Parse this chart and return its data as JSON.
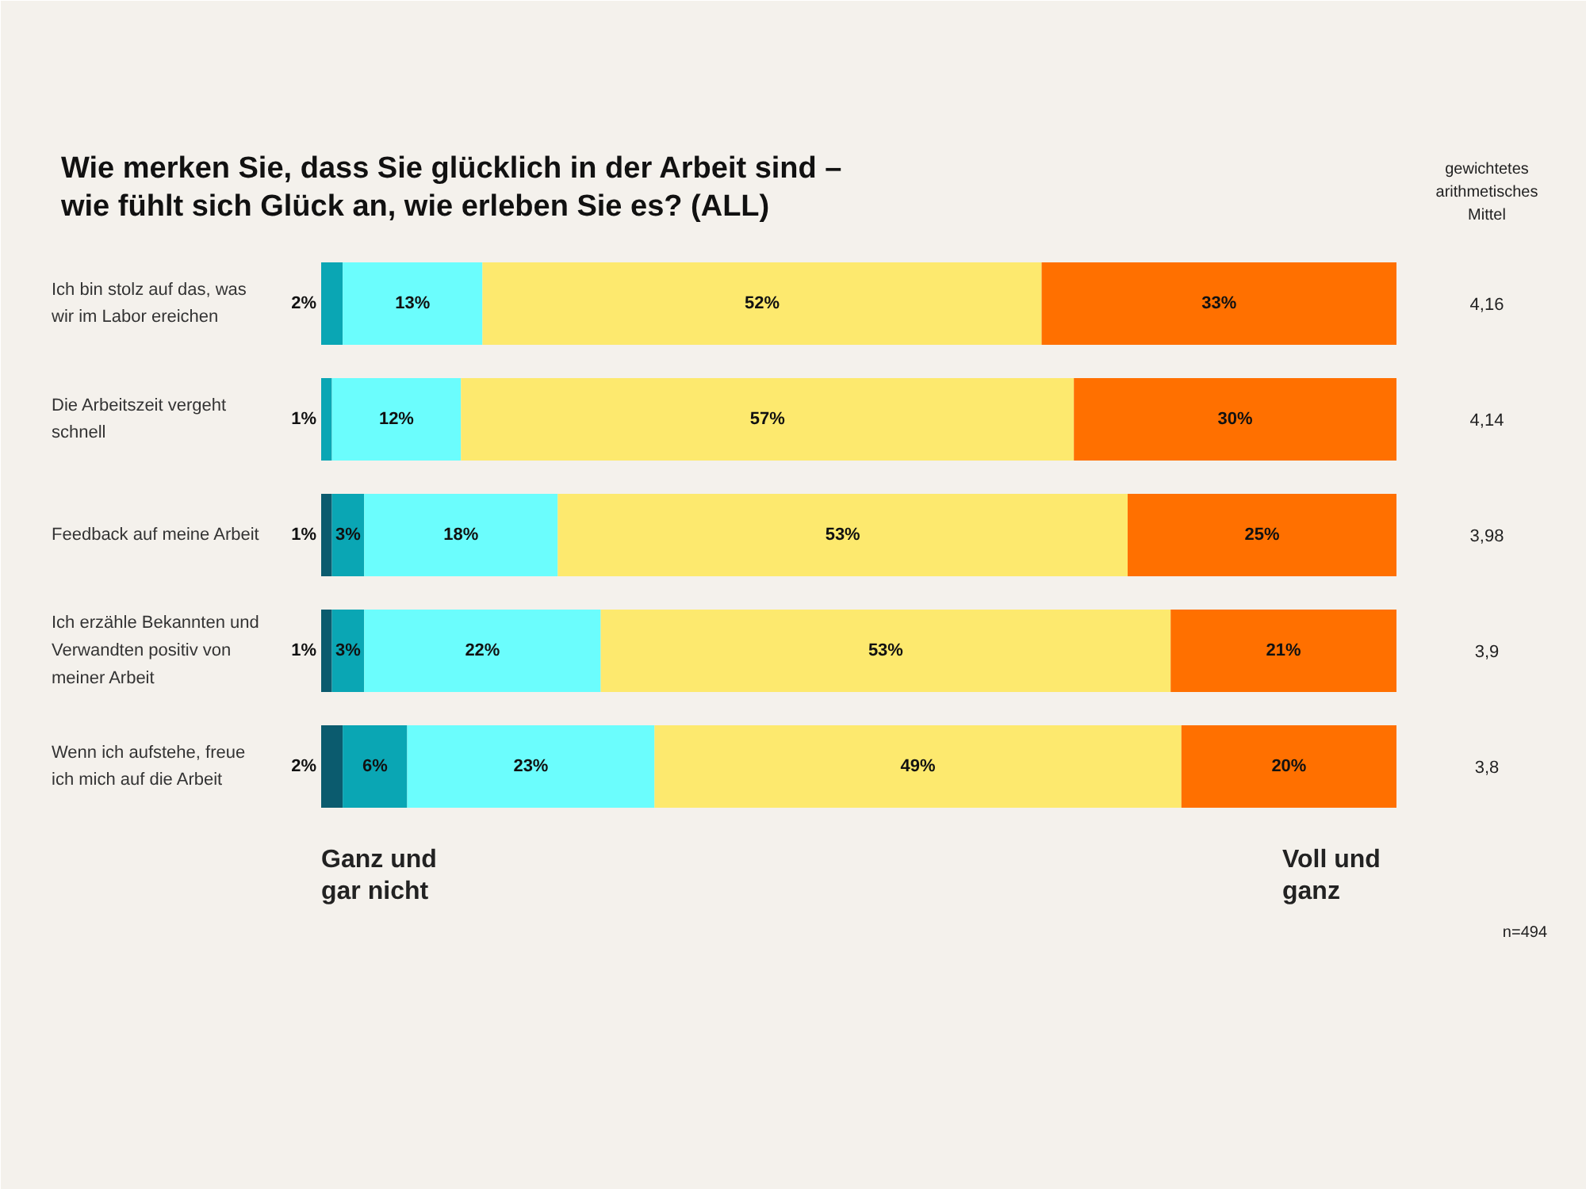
{
  "chart_data": {
    "type": "bar",
    "orientation": "horizontal",
    "stacked": true,
    "grid": false,
    "tick_labels": "y",
    "title": "Wie merken Sie, dass Sie glücklich in der Arbeit sind –\nwie fühlt sich Glück an, wie erleben Sie es? (ALL)",
    "categories": [
      "Ich bin stolz auf das, was wir im Labor ereichen",
      "Die Arbeitszeit vergeht schnell",
      "Feedback auf meine Arbeit",
      "Ich erzähle Bekannten und Verwandten positiv von meiner Arbeit",
      "Wenn ich aufstehe, freue ich mich auf die Arbeit"
    ],
    "series": [
      {
        "color": "#0b5b6e",
        "values": [
          null,
          null,
          1,
          1,
          2
        ],
        "value_labels": [
          null,
          null,
          "1%",
          "1%",
          "2%"
        ]
      },
      {
        "color": "#0aa6b4",
        "values": [
          2,
          1,
          3,
          3,
          6
        ],
        "value_labels": [
          "2%",
          "1%",
          "3%",
          "3%",
          "6%"
        ]
      },
      {
        "color": "#6bfdfd",
        "values": [
          13,
          12,
          18,
          22,
          23
        ],
        "value_labels": [
          "13%",
          "12%",
          "18%",
          "22%",
          "23%"
        ]
      },
      {
        "color": "#fde96e",
        "values": [
          52,
          57,
          53,
          53,
          49
        ],
        "value_labels": [
          "52%",
          "57%",
          "53%",
          "53%",
          "49%"
        ]
      },
      {
        "color": "#ff7000",
        "values": [
          33,
          30,
          25,
          21,
          20
        ],
        "value_labels": [
          "33%",
          "30%",
          "25%",
          "21%",
          "20%"
        ]
      }
    ],
    "annotations": [
      "gewichtetes\narithmetisches\nMittel",
      "4,16",
      "4,14",
      "3,98",
      "3,9",
      "3,8",
      "Ganz und\ngar nicht",
      "Voll und\nganz",
      "n=494"
    ]
  }
}
